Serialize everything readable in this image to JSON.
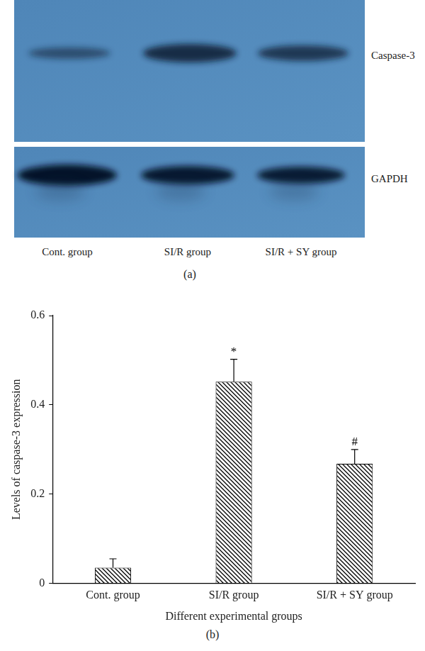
{
  "blot": {
    "panel_label": "(a)",
    "rows": [
      "Caspase-3",
      "GAPDH"
    ],
    "lanes": [
      "Cont. group",
      "SI/R group",
      "SI/R + SY group"
    ]
  },
  "chart_data": {
    "type": "bar",
    "panel_label": "(b)",
    "x_label": "Different experimental groups",
    "y_label": "Levels of caspase-3 expression",
    "categories": [
      "Cont. group",
      "SI/R group",
      "SI/R + SY group"
    ],
    "values": [
      0.035,
      0.452,
      0.268
    ],
    "errors": [
      0.02,
      0.05,
      0.032
    ],
    "annotations": [
      {
        "category": "SI/R group",
        "text": "*"
      },
      {
        "category": "SI/R + SY group",
        "text": "#"
      }
    ],
    "color": "#000000",
    "ylim": [
      0,
      0.6
    ],
    "yticks": [
      0,
      0.2,
      0.4,
      0.6
    ],
    "grid": false
  }
}
